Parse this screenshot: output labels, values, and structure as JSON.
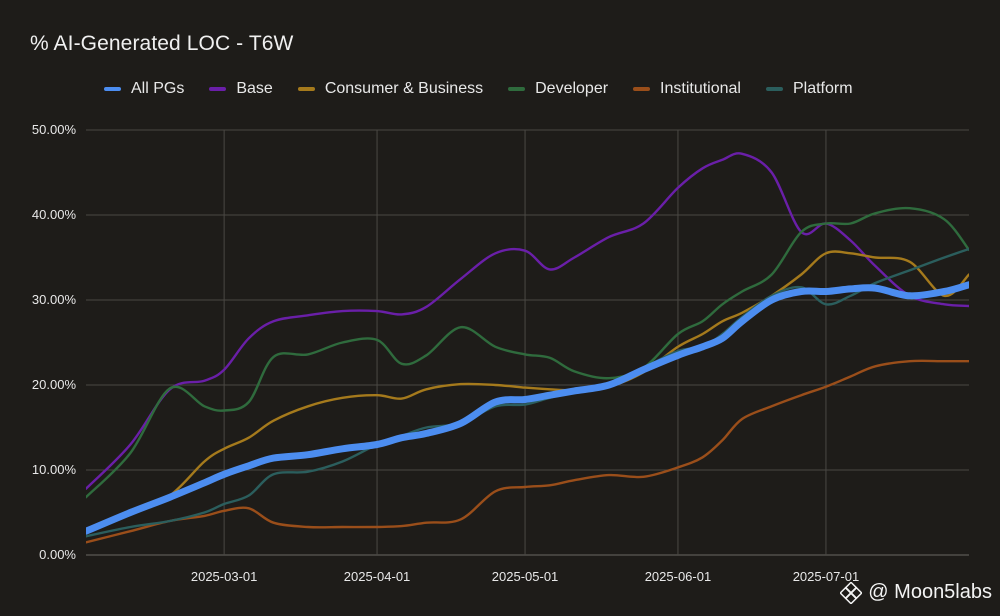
{
  "chart_data": {
    "type": "line",
    "title": "% AI-Generated LOC - T6W",
    "x_axis_type": "date",
    "x_ticks": [
      "2025-03-01",
      "2025-04-01",
      "2025-05-01",
      "2025-06-01",
      "2025-07-01"
    ],
    "xlim": [
      "2025-02-01",
      "2025-07-30"
    ],
    "y_ticks": [
      "0.00%",
      "10.00%",
      "20.00%",
      "30.00%",
      "40.00%",
      "50.00%"
    ],
    "ylim": [
      0,
      50
    ],
    "y_unit": "%",
    "grid": true,
    "legend_position": "top",
    "series": [
      {
        "name": "Base",
        "color": "#6a1fa8",
        "width": 2.4,
        "x": [
          "2025-02-01",
          "2025-02-10",
          "2025-02-18",
          "2025-02-25",
          "2025-03-01",
          "2025-03-06",
          "2025-03-11",
          "2025-03-18",
          "2025-03-25",
          "2025-04-01",
          "2025-04-06",
          "2025-04-11",
          "2025-04-18",
          "2025-04-25",
          "2025-05-01",
          "2025-05-06",
          "2025-05-11",
          "2025-05-18",
          "2025-05-25",
          "2025-06-01",
          "2025-06-06",
          "2025-06-10",
          "2025-06-14",
          "2025-06-20",
          "2025-06-26",
          "2025-07-01",
          "2025-07-06",
          "2025-07-11",
          "2025-07-18",
          "2025-07-25",
          "2025-07-30"
        ],
        "values": [
          7.8,
          13.0,
          19.5,
          20.5,
          21.8,
          25.5,
          27.5,
          28.2,
          28.7,
          28.7,
          28.3,
          29.2,
          32.5,
          35.5,
          35.8,
          33.6,
          35.0,
          37.4,
          39.0,
          43.2,
          45.5,
          46.5,
          47.2,
          45.0,
          38.0,
          39.0,
          37.0,
          34.0,
          30.5,
          29.5,
          29.3
        ]
      },
      {
        "name": "Consumer & Business",
        "color": "#a57a1c",
        "width": 2.4,
        "x": [
          "2025-02-01",
          "2025-02-10",
          "2025-02-18",
          "2025-02-25",
          "2025-03-01",
          "2025-03-06",
          "2025-03-11",
          "2025-03-18",
          "2025-03-25",
          "2025-04-01",
          "2025-04-06",
          "2025-04-11",
          "2025-04-18",
          "2025-04-25",
          "2025-05-01",
          "2025-05-06",
          "2025-05-11",
          "2025-05-18",
          "2025-05-25",
          "2025-06-01",
          "2025-06-06",
          "2025-06-10",
          "2025-06-14",
          "2025-06-20",
          "2025-06-26",
          "2025-07-01",
          "2025-07-06",
          "2025-07-11",
          "2025-07-18",
          "2025-07-25",
          "2025-07-30"
        ],
        "values": [
          2.8,
          5.0,
          7.0,
          11.0,
          12.5,
          13.8,
          15.8,
          17.5,
          18.5,
          18.8,
          18.4,
          19.5,
          20.1,
          20.0,
          19.7,
          19.5,
          19.4,
          19.8,
          21.5,
          24.5,
          26.0,
          27.5,
          28.5,
          30.5,
          33.0,
          35.5,
          35.5,
          35.0,
          34.5,
          30.5,
          33.0
        ]
      },
      {
        "name": "Developer",
        "color": "#2f6b3d",
        "width": 2.4,
        "x": [
          "2025-02-01",
          "2025-02-10",
          "2025-02-18",
          "2025-02-25",
          "2025-03-01",
          "2025-03-06",
          "2025-03-11",
          "2025-03-18",
          "2025-03-25",
          "2025-04-01",
          "2025-04-06",
          "2025-04-11",
          "2025-04-18",
          "2025-04-25",
          "2025-05-01",
          "2025-05-06",
          "2025-05-11",
          "2025-05-18",
          "2025-05-25",
          "2025-06-01",
          "2025-06-06",
          "2025-06-10",
          "2025-06-14",
          "2025-06-20",
          "2025-06-26",
          "2025-07-01",
          "2025-07-06",
          "2025-07-11",
          "2025-07-18",
          "2025-07-25",
          "2025-07-30"
        ],
        "values": [
          6.8,
          12.0,
          19.6,
          17.5,
          17.0,
          18.0,
          23.3,
          23.6,
          25.0,
          25.3,
          22.5,
          23.5,
          26.8,
          24.5,
          23.6,
          23.2,
          21.6,
          20.8,
          22.0,
          26.0,
          27.5,
          29.5,
          31.0,
          33.0,
          38.0,
          39.0,
          39.0,
          40.2,
          40.8,
          39.5,
          35.9
        ]
      },
      {
        "name": "Institutional",
        "color": "#9a4e1a",
        "width": 2.4,
        "x": [
          "2025-02-01",
          "2025-02-10",
          "2025-02-18",
          "2025-02-25",
          "2025-03-01",
          "2025-03-06",
          "2025-03-11",
          "2025-03-18",
          "2025-03-25",
          "2025-04-01",
          "2025-04-06",
          "2025-04-11",
          "2025-04-18",
          "2025-04-25",
          "2025-05-01",
          "2025-05-06",
          "2025-05-11",
          "2025-05-18",
          "2025-05-25",
          "2025-06-01",
          "2025-06-06",
          "2025-06-10",
          "2025-06-14",
          "2025-06-20",
          "2025-06-26",
          "2025-07-01",
          "2025-07-06",
          "2025-07-11",
          "2025-07-18",
          "2025-07-25",
          "2025-07-30"
        ],
        "values": [
          1.5,
          2.8,
          4.0,
          4.6,
          5.2,
          5.5,
          3.8,
          3.3,
          3.3,
          3.3,
          3.4,
          3.8,
          4.2,
          7.5,
          8.0,
          8.2,
          8.8,
          9.4,
          9.2,
          10.3,
          11.5,
          13.5,
          16.0,
          17.5,
          18.8,
          19.8,
          21.0,
          22.2,
          22.8,
          22.8,
          22.8
        ]
      },
      {
        "name": "Platform",
        "color": "#2b5e5d",
        "width": 2.4,
        "x": [
          "2025-02-01",
          "2025-02-10",
          "2025-02-18",
          "2025-02-25",
          "2025-03-01",
          "2025-03-06",
          "2025-03-11",
          "2025-03-18",
          "2025-03-25",
          "2025-04-01",
          "2025-04-06",
          "2025-04-11",
          "2025-04-18",
          "2025-04-25",
          "2025-05-01",
          "2025-05-06",
          "2025-05-11",
          "2025-05-18",
          "2025-05-25",
          "2025-06-01",
          "2025-06-06",
          "2025-06-10",
          "2025-06-14",
          "2025-06-20",
          "2025-06-26",
          "2025-07-01",
          "2025-07-06",
          "2025-07-11",
          "2025-07-18",
          "2025-07-25",
          "2025-07-30"
        ],
        "values": [
          2.2,
          3.3,
          4.0,
          5.0,
          6.0,
          7.0,
          9.5,
          9.8,
          11.0,
          13.0,
          14.0,
          15.0,
          15.5,
          17.5,
          17.7,
          18.5,
          19.2,
          20.0,
          22.0,
          24.0,
          24.5,
          26.0,
          28.0,
          30.5,
          31.5,
          29.5,
          30.5,
          32.0,
          33.5,
          35.0,
          36.0
        ]
      },
      {
        "name": "All PGs",
        "color": "#4c8df0",
        "width": 7,
        "x": [
          "2025-02-01",
          "2025-02-10",
          "2025-02-18",
          "2025-02-25",
          "2025-03-01",
          "2025-03-06",
          "2025-03-11",
          "2025-03-18",
          "2025-03-25",
          "2025-04-01",
          "2025-04-06",
          "2025-04-11",
          "2025-04-18",
          "2025-04-25",
          "2025-05-01",
          "2025-05-06",
          "2025-05-11",
          "2025-05-18",
          "2025-05-25",
          "2025-06-01",
          "2025-06-06",
          "2025-06-10",
          "2025-06-14",
          "2025-06-20",
          "2025-06-26",
          "2025-07-01",
          "2025-07-06",
          "2025-07-11",
          "2025-07-18",
          "2025-07-25",
          "2025-07-30"
        ],
        "values": [
          2.8,
          5.0,
          6.8,
          8.5,
          9.5,
          10.5,
          11.4,
          11.8,
          12.5,
          13.0,
          13.8,
          14.3,
          15.5,
          18.0,
          18.3,
          18.8,
          19.3,
          20.0,
          21.8,
          23.5,
          24.5,
          25.5,
          27.5,
          30.0,
          31.0,
          31.0,
          31.3,
          31.4,
          30.5,
          31.0,
          31.8
        ]
      }
    ],
    "legend_order": [
      "All PGs",
      "Base",
      "Consumer & Business",
      "Developer",
      "Institutional",
      "Platform"
    ]
  },
  "watermark": {
    "text": "@ Moon5labs",
    "icon": "binance-logo-icon"
  },
  "colors": {
    "background": "#1e1c19",
    "grid": "#4a4844",
    "text": "#e8e8e8"
  }
}
